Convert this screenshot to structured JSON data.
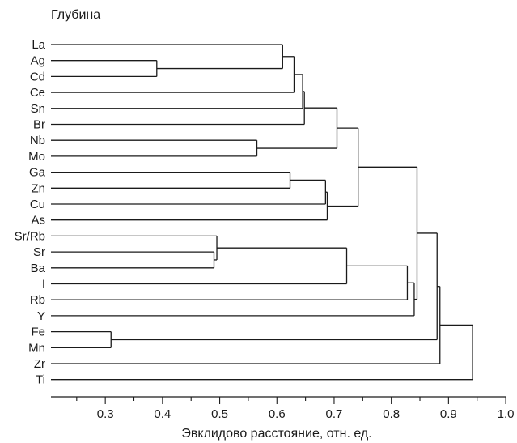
{
  "chart_data": {
    "type": "dendrogram",
    "title": "Глубина",
    "xlabel": "Эвклидово расстояние, отн. ед.",
    "xlim": [
      0.205,
      1.0
    ],
    "x_major_ticks": [
      0.3,
      0.4,
      0.5,
      0.6,
      0.7,
      0.8,
      0.9,
      1.0
    ],
    "x_tick_labels": [
      "0.3",
      "0.4",
      "0.5",
      "0.6",
      "0.7",
      "0.8",
      "0.9",
      "1.0"
    ],
    "x_minor_step": 0.05,
    "leaves": [
      "La",
      "Ag",
      "Cd",
      "Ce",
      "Sn",
      "Br",
      "Nb",
      "Mo",
      "Ga",
      "Zn",
      "Cu",
      "As",
      "Sr/Rb",
      "Sr",
      "Ba",
      "I",
      "Rb",
      "Y",
      "Fe",
      "Mn",
      "Zr",
      "Ti"
    ],
    "merges": [
      {
        "a": "Fe",
        "b": "Mn",
        "distance": 0.31
      },
      {
        "a": "Ag",
        "b": "Cd",
        "distance": 0.39
      },
      {
        "a": "Sr",
        "b": "Ba",
        "distance": 0.49
      },
      {
        "a": "Sr/Rb",
        "b": 2,
        "distance": 0.495
      },
      {
        "a": "Nb",
        "b": "Mo",
        "distance": 0.565
      },
      {
        "a": "La",
        "b": 1,
        "distance": 0.61
      },
      {
        "a": "Ga",
        "b": "Zn",
        "distance": 0.623
      },
      {
        "a": 5,
        "b": "Ce",
        "distance": 0.63
      },
      {
        "a": 7,
        "b": "Sn",
        "distance": 0.645
      },
      {
        "a": 8,
        "b": "Br",
        "distance": 0.648
      },
      {
        "a": 6,
        "b": "Cu",
        "distance": 0.685
      },
      {
        "a": 10,
        "b": "As",
        "distance": 0.688
      },
      {
        "a": 9,
        "b": 4,
        "distance": 0.705
      },
      {
        "a": 12,
        "b": 11,
        "distance": 0.742
      },
      {
        "a": 3,
        "b": "I",
        "distance": 0.722
      },
      {
        "a": 14,
        "b": "Rb",
        "distance": 0.828
      },
      {
        "a": 15,
        "b": "Y",
        "distance": 0.84
      },
      {
        "a": 13,
        "b": 16,
        "distance": 0.845
      },
      {
        "a": 17,
        "b": 0,
        "distance": 0.88
      },
      {
        "a": 18,
        "b": "Zr",
        "distance": 0.885
      },
      {
        "a": 19,
        "b": "Ti",
        "distance": 0.942
      }
    ]
  }
}
